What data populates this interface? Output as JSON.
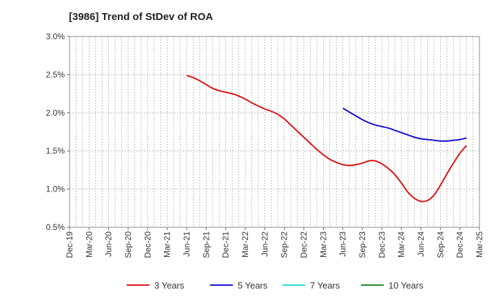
{
  "chart_data": {
    "type": "line",
    "title": "[3986]  Trend of StDev of ROA",
    "x_ticks": [
      "Dec-19",
      "Mar-20",
      "Jun-20",
      "Sep-20",
      "Dec-20",
      "Mar-21",
      "Jun-21",
      "Sep-21",
      "Dec-21",
      "Mar-22",
      "Jun-22",
      "Sep-22",
      "Dec-22",
      "Mar-23",
      "Jun-23",
      "Sep-23",
      "Dec-23",
      "Mar-24",
      "Jun-24",
      "Sep-24",
      "Dec-24",
      "Mar-25"
    ],
    "y_ticks": [
      "0.5%",
      "1.0%",
      "1.5%",
      "2.0%",
      "2.5%",
      "3.0%"
    ],
    "ylim": [
      0.5,
      3.0
    ],
    "x_months": {
      "start": "Dec-19",
      "end": "Mar-25"
    },
    "grid": true,
    "legend_position": "bottom",
    "series": [
      {
        "name": "3 Years",
        "color": "#dd1111",
        "points": [
          [
            "Jun-21",
            2.49
          ],
          [
            "Jul-21",
            2.46
          ],
          [
            "Aug-21",
            2.42
          ],
          [
            "Sep-21",
            2.37
          ],
          [
            "Oct-21",
            2.32
          ],
          [
            "Nov-21",
            2.29
          ],
          [
            "Dec-21",
            2.27
          ],
          [
            "Jan-22",
            2.25
          ],
          [
            "Feb-22",
            2.22
          ],
          [
            "Mar-22",
            2.18
          ],
          [
            "Apr-22",
            2.13
          ],
          [
            "May-22",
            2.09
          ],
          [
            "Jun-22",
            2.05
          ],
          [
            "Jul-22",
            2.02
          ],
          [
            "Aug-22",
            1.98
          ],
          [
            "Sep-22",
            1.92
          ],
          [
            "Oct-22",
            1.84
          ],
          [
            "Nov-22",
            1.76
          ],
          [
            "Dec-22",
            1.68
          ],
          [
            "Jan-23",
            1.6
          ],
          [
            "Feb-23",
            1.52
          ],
          [
            "Mar-23",
            1.45
          ],
          [
            "Apr-23",
            1.39
          ],
          [
            "May-23",
            1.35
          ],
          [
            "Jun-23",
            1.32
          ],
          [
            "Jul-23",
            1.31
          ],
          [
            "Aug-23",
            1.32
          ],
          [
            "Sep-23",
            1.34
          ],
          [
            "Oct-23",
            1.37
          ],
          [
            "Nov-23",
            1.37
          ],
          [
            "Dec-23",
            1.33
          ],
          [
            "Jan-24",
            1.27
          ],
          [
            "Feb-24",
            1.19
          ],
          [
            "Mar-24",
            1.08
          ],
          [
            "Apr-24",
            0.96
          ],
          [
            "May-24",
            0.88
          ],
          [
            "Jun-24",
            0.84
          ],
          [
            "Jul-24",
            0.85
          ],
          [
            "Aug-24",
            0.92
          ],
          [
            "Sep-24",
            1.05
          ],
          [
            "Oct-24",
            1.2
          ],
          [
            "Nov-24",
            1.34
          ],
          [
            "Dec-24",
            1.47
          ],
          [
            "Jan-25",
            1.57
          ]
        ]
      },
      {
        "name": "5 Years",
        "color": "#1111cc",
        "points": [
          [
            "Jun-23",
            2.06
          ],
          [
            "Jul-23",
            2.01
          ],
          [
            "Aug-23",
            1.96
          ],
          [
            "Sep-23",
            1.91
          ],
          [
            "Oct-23",
            1.87
          ],
          [
            "Nov-23",
            1.84
          ],
          [
            "Dec-23",
            1.82
          ],
          [
            "Jan-24",
            1.8
          ],
          [
            "Feb-24",
            1.77
          ],
          [
            "Mar-24",
            1.74
          ],
          [
            "Apr-24",
            1.71
          ],
          [
            "May-24",
            1.68
          ],
          [
            "Jun-24",
            1.66
          ],
          [
            "Jul-24",
            1.65
          ],
          [
            "Aug-24",
            1.64
          ],
          [
            "Sep-24",
            1.63
          ],
          [
            "Oct-24",
            1.63
          ],
          [
            "Nov-24",
            1.64
          ],
          [
            "Dec-24",
            1.65
          ],
          [
            "Jan-25",
            1.67
          ]
        ]
      },
      {
        "name": "7 Years",
        "color": "#22dddd",
        "points": []
      },
      {
        "name": "10 Years",
        "color": "#228822",
        "points": []
      }
    ]
  }
}
